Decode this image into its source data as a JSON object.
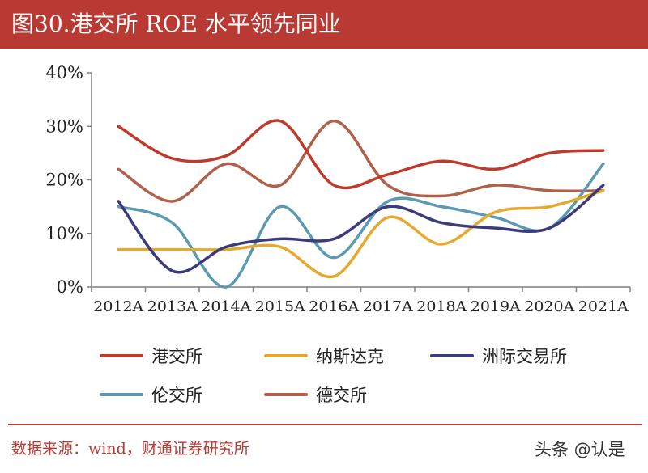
{
  "header": {
    "title": "图30.港交所 ROE 水平领先同业"
  },
  "footer": {
    "source": "数据来源：wind，财通证券研究所",
    "watermark": "头条 @认是"
  },
  "chart_data": {
    "type": "line",
    "title": "图30.港交所 ROE 水平领先同业",
    "categories": [
      "2012A",
      "2013A",
      "2014A",
      "2015A",
      "2016A",
      "2017A",
      "2018A",
      "2019A",
      "2020A",
      "2021A"
    ],
    "ylim": [
      0,
      40
    ],
    "yticks": [
      "0%",
      "10%",
      "20%",
      "30%",
      "40%"
    ],
    "xlabel": "",
    "ylabel": "",
    "grid": false,
    "legend_position": "bottom",
    "series": [
      {
        "name": "港交所",
        "color": "#c0392b",
        "values": [
          30,
          24,
          24.5,
          31,
          19,
          21,
          23.5,
          22,
          25,
          25.5
        ]
      },
      {
        "name": "纳斯达克",
        "color": "#e6a82e",
        "values": [
          7,
          7,
          7,
          7.5,
          2,
          13,
          8,
          14,
          15,
          18
        ]
      },
      {
        "name": "洲际交易所",
        "color": "#3c3c7a",
        "values": [
          16,
          3,
          7.5,
          9,
          9,
          15,
          12,
          11,
          11,
          19
        ]
      },
      {
        "name": "伦交所",
        "color": "#5b9ab0",
        "values": [
          15,
          12,
          0,
          15,
          5.5,
          16,
          15,
          13,
          11,
          23
        ]
      },
      {
        "name": "德交所",
        "color": "#b0614b",
        "values": [
          22,
          16,
          23,
          19,
          31,
          19,
          17,
          19,
          18,
          18
        ]
      }
    ]
  }
}
